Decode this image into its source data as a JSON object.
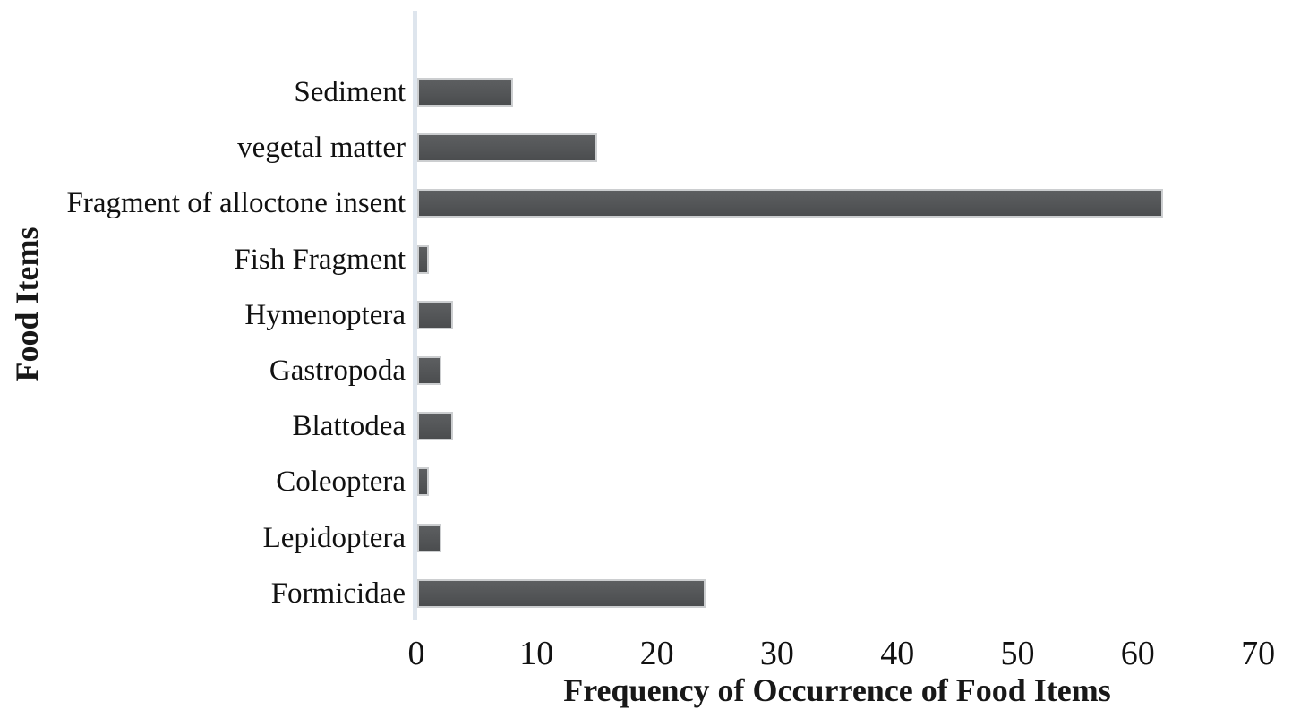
{
  "chart_data": {
    "type": "bar",
    "orientation": "horizontal",
    "title": "",
    "xlabel": "Frequency of Occurrence of Food Items",
    "ylabel": "Food Items",
    "categories": [
      "Sediment",
      "vegetal matter",
      "Fragment of alloctone insent",
      "Fish Fragment",
      "Hymenoptera",
      "Gastropoda",
      "Blattodea",
      "Coleoptera",
      "Lepidoptera",
      "Formicidae"
    ],
    "values": [
      8,
      15,
      62,
      1,
      3,
      2,
      3,
      1,
      2,
      24
    ],
    "xlim": [
      0,
      70
    ],
    "xticks": [
      0,
      10,
      20,
      30,
      40,
      50,
      60,
      70
    ],
    "grid": false,
    "legend": false,
    "colors": {
      "bar_gradient_top": "#5d5f61",
      "bar_gradient_bottom": "#4b4d4f",
      "bar_border": "#ccced0",
      "axis_line": "#dee5ed",
      "text": "#111111",
      "background": "#ffffff"
    }
  }
}
